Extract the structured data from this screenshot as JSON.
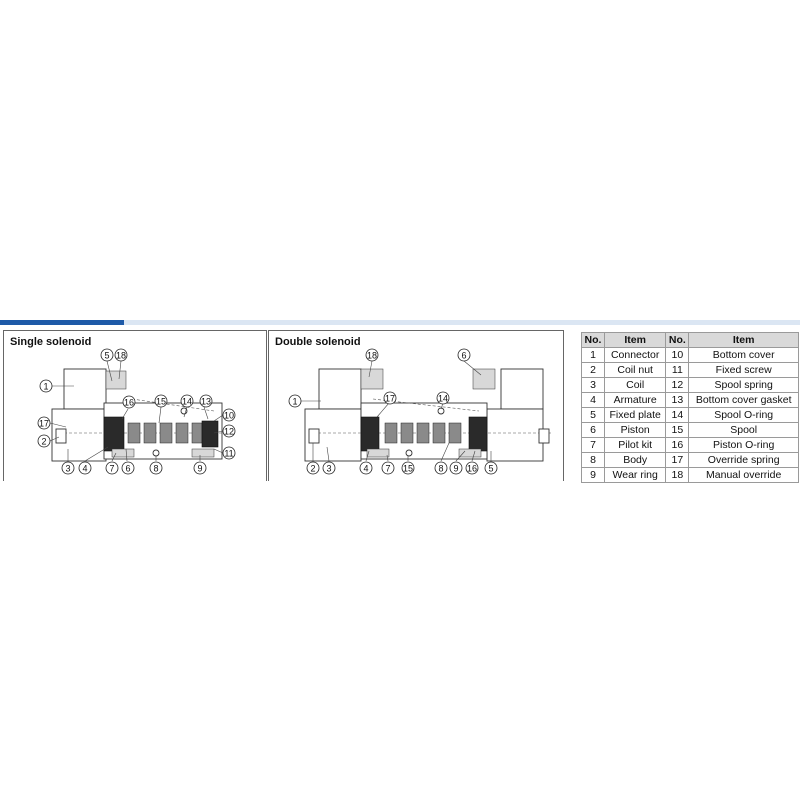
{
  "panels": {
    "single": {
      "title": "Single solenoid"
    },
    "double": {
      "title": "Double solenoid"
    }
  },
  "parts_table": {
    "headers": {
      "no": "No.",
      "item": "Item"
    },
    "rows": [
      {
        "left_no": "1",
        "left_item": "Connector",
        "right_no": "10",
        "right_item": "Bottom cover"
      },
      {
        "left_no": "2",
        "left_item": "Coil nut",
        "right_no": "11",
        "right_item": "Fixed screw"
      },
      {
        "left_no": "3",
        "left_item": "Coil",
        "right_no": "12",
        "right_item": "Spool spring"
      },
      {
        "left_no": "4",
        "left_item": "Armature",
        "right_no": "13",
        "right_item": "Bottom cover gasket"
      },
      {
        "left_no": "5",
        "left_item": "Fixed plate",
        "right_no": "14",
        "right_item": "Spool O-ring"
      },
      {
        "left_no": "6",
        "left_item": "Piston",
        "right_no": "15",
        "right_item": "Spool"
      },
      {
        "left_no": "7",
        "left_item": "Pilot kit",
        "right_no": "16",
        "right_item": "Piston O-ring"
      },
      {
        "left_no": "8",
        "left_item": "Body",
        "right_no": "17",
        "right_item": "Override spring"
      },
      {
        "left_no": "9",
        "left_item": "Wear ring",
        "right_no": "18",
        "right_item": "Manual override"
      }
    ]
  },
  "callouts": {
    "single": [
      "5",
      "18",
      "1",
      "16",
      "15",
      "14",
      "13",
      "10",
      "17",
      "12",
      "2",
      "3",
      "4",
      "7",
      "6",
      "8",
      "9",
      "11"
    ],
    "double": [
      "18",
      "6",
      "1",
      "17",
      "14",
      "2",
      "3",
      "4",
      "7",
      "15",
      "8",
      "9",
      "16",
      "5"
    ]
  }
}
